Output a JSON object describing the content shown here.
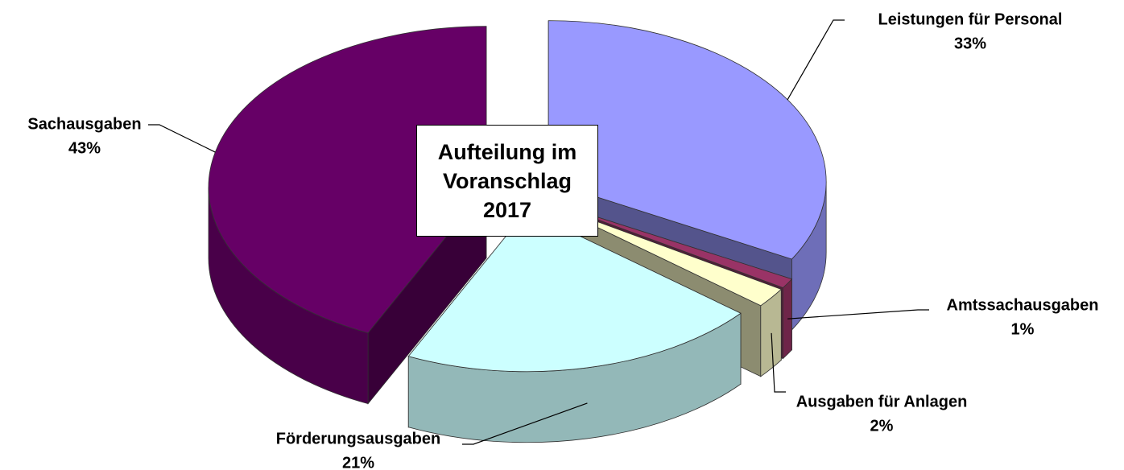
{
  "chart_data": {
    "type": "pie",
    "title": "Aufteilung im Voranschlag 2017",
    "categories": [
      "Leistungen für Personal",
      "Amtssachausgaben",
      "Ausgaben für Anlagen",
      "Förderungsausgaben",
      "Sachausgaben"
    ],
    "values": [
      33,
      1,
      2,
      21,
      43
    ],
    "value_labels": [
      "33%",
      "1%",
      "2%",
      "21%",
      "43%"
    ],
    "colors": [
      "#9999ff",
      "#993366",
      "#ffffcc",
      "#ccffff",
      "#660066"
    ]
  }
}
